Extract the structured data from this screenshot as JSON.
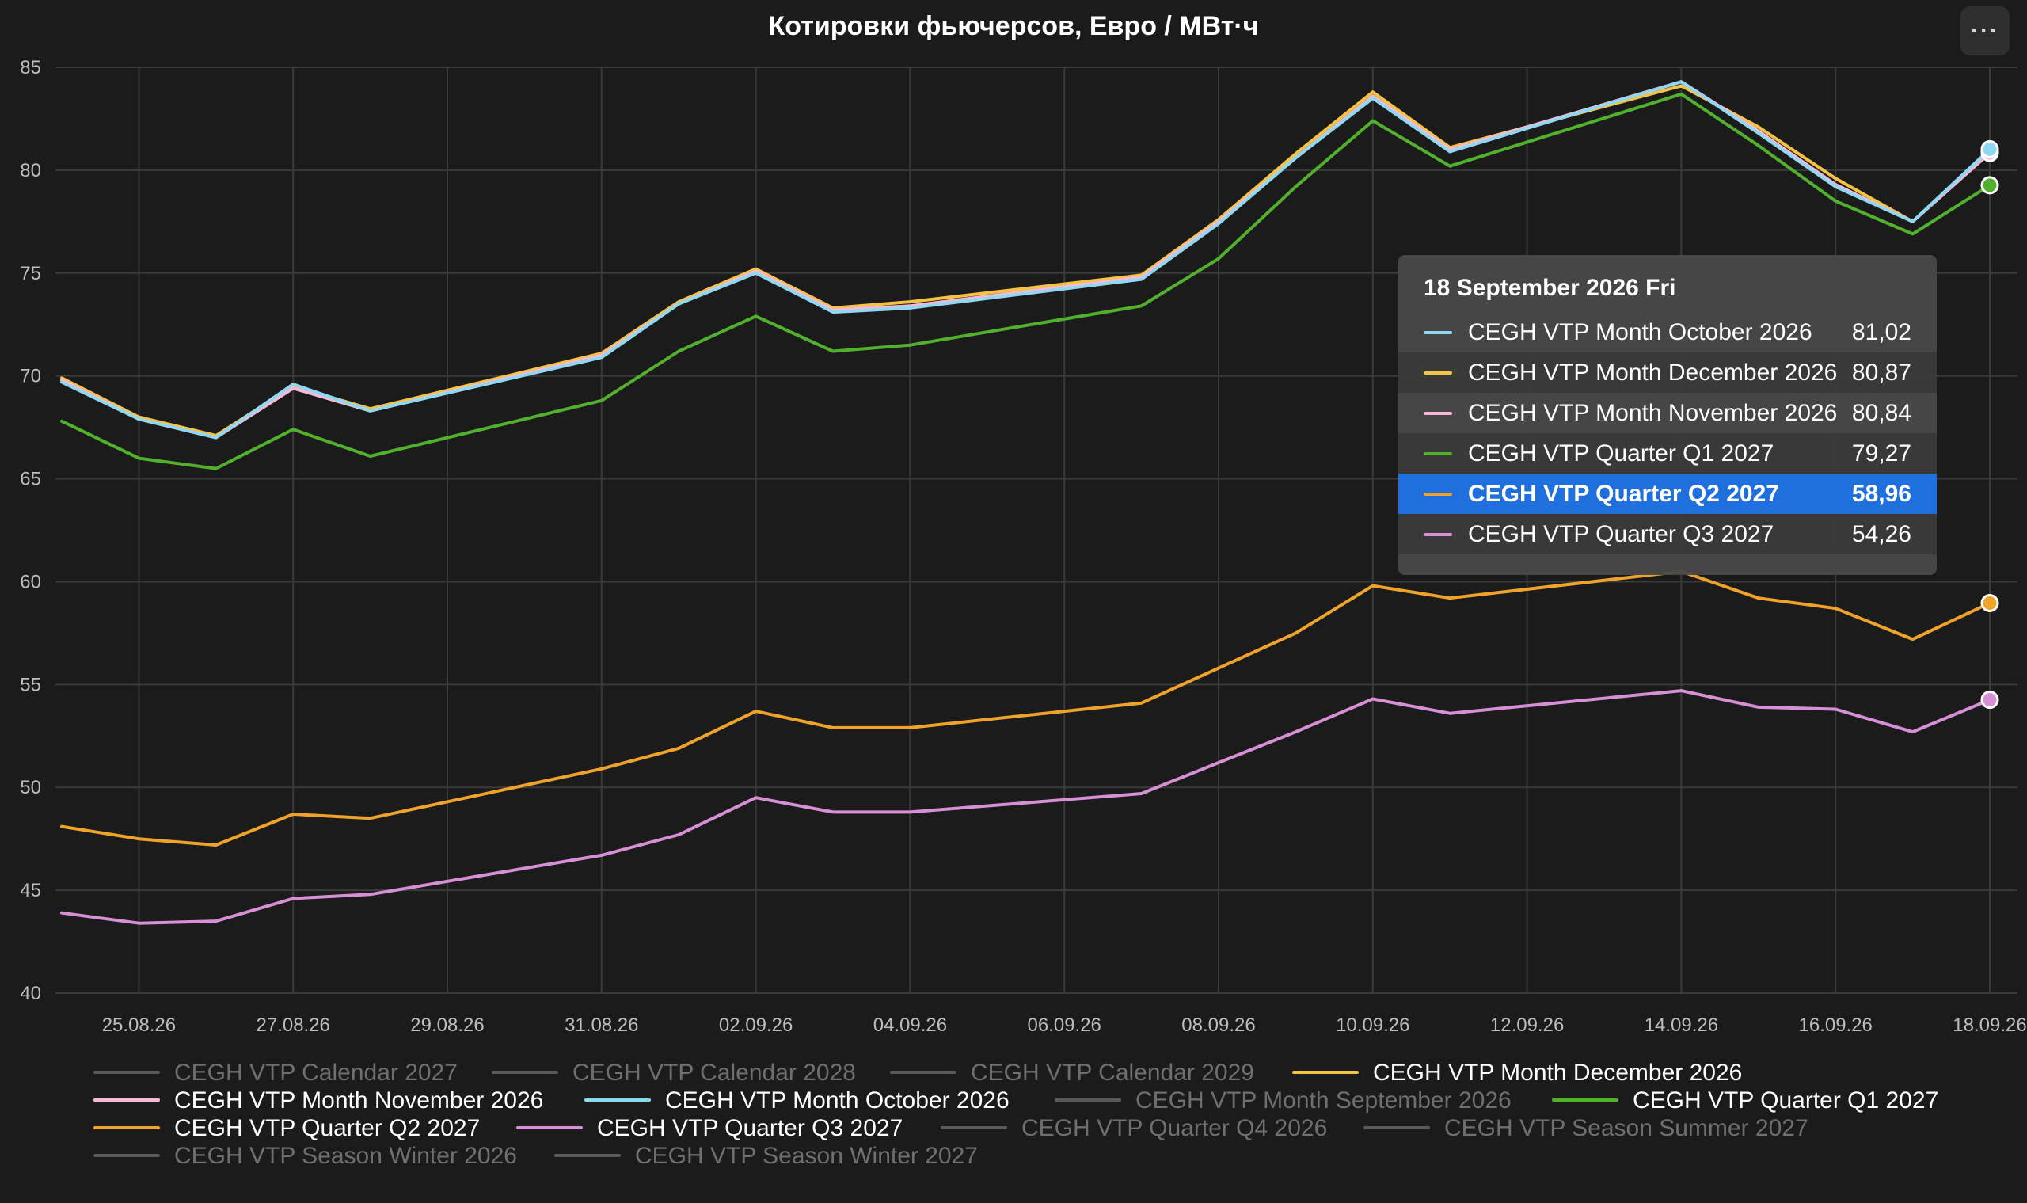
{
  "title": "Котировки фьючерсов, Евро / МВт·ч",
  "menu_icon": "more-horizontal-icon",
  "chart_data": {
    "type": "line",
    "title": "Котировки фьючерсов, Евро / МВт·ч",
    "ylim": [
      40,
      85
    ],
    "y_ticks": [
      "40",
      "45",
      "50",
      "55",
      "60",
      "65",
      "70",
      "75",
      "80",
      "85"
    ],
    "x_ticks": [
      "25.08.26",
      "27.08.26",
      "29.08.26",
      "31.08.26",
      "02.09.26",
      "04.09.26",
      "06.09.26",
      "08.09.26",
      "10.09.26",
      "12.09.26",
      "14.09.26",
      "16.09.26",
      "18.09.26"
    ],
    "grid": true,
    "legend_position": "bottom",
    "x": [
      "2026-08-24",
      "2026-08-25",
      "2026-08-26",
      "2026-08-27",
      "2026-08-28",
      "2026-08-31",
      "2026-09-01",
      "2026-09-02",
      "2026-09-03",
      "2026-09-04",
      "2026-09-07",
      "2026-09-08",
      "2026-09-09",
      "2026-09-10",
      "2026-09-11",
      "2026-09-14",
      "2026-09-15",
      "2026-09-16",
      "2026-09-17",
      "2026-09-18"
    ],
    "series": [
      {
        "name": "CEGH VTP Month December 2026",
        "color": "#f5c242",
        "values": [
          69.9,
          68.0,
          67.1,
          69.5,
          68.4,
          71.1,
          73.6,
          75.2,
          73.3,
          73.6,
          74.9,
          77.6,
          80.8,
          83.8,
          81.1,
          84.1,
          82.1,
          79.6,
          77.5,
          80.87
        ]
      },
      {
        "name": "CEGH VTP Month November 2026",
        "color": "#f7b8d8",
        "values": [
          69.8,
          67.9,
          67.0,
          69.4,
          68.3,
          71.0,
          73.5,
          75.1,
          73.2,
          73.4,
          74.8,
          77.5,
          80.6,
          83.6,
          81.0,
          84.3,
          81.9,
          79.3,
          77.5,
          80.84
        ]
      },
      {
        "name": "CEGH VTP Month October 2026",
        "color": "#8fd8f2",
        "values": [
          69.7,
          67.9,
          67.0,
          69.6,
          68.3,
          70.9,
          73.5,
          75.0,
          73.1,
          73.3,
          74.7,
          77.4,
          80.6,
          83.5,
          80.9,
          84.3,
          81.8,
          79.2,
          77.5,
          81.02
        ]
      },
      {
        "name": "CEGH VTP Quarter Q1 2027",
        "color": "#52b12c",
        "values": [
          67.8,
          66.0,
          65.5,
          67.4,
          66.1,
          68.8,
          71.2,
          72.9,
          71.2,
          71.5,
          73.4,
          75.7,
          79.2,
          82.4,
          80.2,
          83.7,
          81.2,
          78.5,
          76.9,
          79.27
        ]
      },
      {
        "name": "CEGH VTP Quarter Q2 2027",
        "color": "#f0a32a",
        "values": [
          48.1,
          47.5,
          47.2,
          48.7,
          48.5,
          50.9,
          51.9,
          53.7,
          52.9,
          52.9,
          54.1,
          55.8,
          57.5,
          59.8,
          59.2,
          60.5,
          59.2,
          58.7,
          57.2,
          58.96
        ]
      },
      {
        "name": "CEGH VTP Quarter Q3 2027",
        "color": "#d78fd6",
        "values": [
          43.9,
          43.4,
          43.5,
          44.6,
          44.8,
          46.7,
          47.7,
          49.5,
          48.8,
          48.8,
          49.7,
          51.2,
          52.7,
          54.3,
          53.6,
          54.7,
          53.9,
          53.8,
          52.7,
          54.26
        ]
      }
    ],
    "tooltip": {
      "header": "18 September 2026 Fri",
      "rows": [
        {
          "name": "CEGH VTP Month October 2026",
          "value": "81,02",
          "color": "#8fd8f2",
          "alt": false,
          "selected": false
        },
        {
          "name": "CEGH VTP Month December 2026",
          "value": "80,87",
          "color": "#f5c242",
          "alt": true,
          "selected": false
        },
        {
          "name": "CEGH VTP Month November 2026",
          "value": "80,84",
          "color": "#f7b8d8",
          "alt": false,
          "selected": false
        },
        {
          "name": "CEGH VTP Quarter Q1 2027",
          "value": "79,27",
          "color": "#52b12c",
          "alt": true,
          "selected": false
        },
        {
          "name": "CEGH VTP Quarter Q2 2027",
          "value": "58,96",
          "color": "#f0a32a",
          "alt": false,
          "selected": true
        },
        {
          "name": "CEGH VTP Quarter Q3 2027",
          "value": "54,26",
          "color": "#d78fd6",
          "alt": true,
          "selected": false
        }
      ]
    },
    "legend": [
      {
        "name": "CEGH VTP Calendar 2027",
        "color": "#5a5a5a",
        "enabled": false
      },
      {
        "name": "CEGH VTP Calendar 2028",
        "color": "#5a5a5a",
        "enabled": false
      },
      {
        "name": "CEGH VTP Calendar 2029",
        "color": "#5a5a5a",
        "enabled": false
      },
      {
        "name": "CEGH VTP Month December 2026",
        "color": "#f5c242",
        "enabled": true
      },
      {
        "name": "CEGH VTP Month November 2026",
        "color": "#f7b8d8",
        "enabled": true
      },
      {
        "name": "CEGH VTP Month October 2026",
        "color": "#8fd8f2",
        "enabled": true
      },
      {
        "name": "CEGH VTP Month September 2026",
        "color": "#5a5a5a",
        "enabled": false
      },
      {
        "name": "CEGH VTP Quarter Q1 2027",
        "color": "#52b12c",
        "enabled": true
      },
      {
        "name": "CEGH VTP Quarter Q2 2027",
        "color": "#f0a32a",
        "enabled": true
      },
      {
        "name": "CEGH VTP Quarter Q3 2027",
        "color": "#d78fd6",
        "enabled": true
      },
      {
        "name": "CEGH VTP Quarter Q4 2026",
        "color": "#5a5a5a",
        "enabled": false
      },
      {
        "name": "CEGH VTP Season Summer 2027",
        "color": "#5a5a5a",
        "enabled": false
      },
      {
        "name": "CEGH VTP Season Winter 2026",
        "color": "#5a5a5a",
        "enabled": false
      },
      {
        "name": "CEGH VTP Season Winter 2027",
        "color": "#5a5a5a",
        "enabled": false
      }
    ]
  }
}
